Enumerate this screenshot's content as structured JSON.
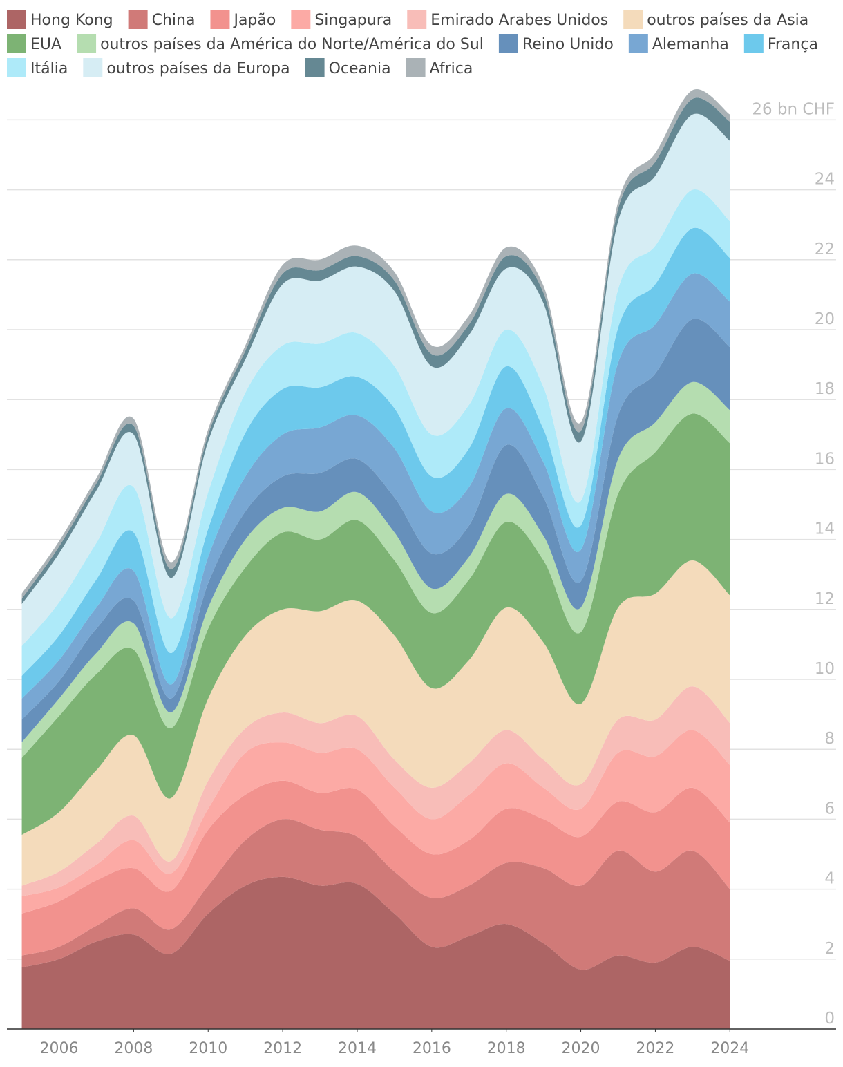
{
  "chart_data": {
    "type": "stacked-area",
    "x": [
      2005,
      2006,
      2007,
      2008,
      2009,
      2010,
      2011,
      2012,
      2013,
      2014,
      2015,
      2016,
      2017,
      2018,
      2019,
      2020,
      2021,
      2022,
      2023,
      2024
    ],
    "xlim": [
      2004.6,
      2026.85
    ],
    "xticks": [
      2006,
      2008,
      2010,
      2012,
      2014,
      2016,
      2018,
      2020,
      2022,
      2024
    ],
    "ylim": [
      0,
      26
    ],
    "yticks": [
      0,
      2,
      4,
      6,
      8,
      10,
      12,
      14,
      16,
      18,
      20,
      22,
      24,
      {
        "value": 26,
        "label": "26 bn CHF"
      }
    ],
    "grid": true,
    "legend": "top",
    "series": [
      {
        "name": "Hong Kong",
        "color": "#ad6565",
        "values": [
          1.76,
          2.0,
          2.5,
          2.7,
          2.15,
          3.3,
          4.1,
          4.35,
          4.1,
          4.15,
          3.3,
          2.35,
          2.65,
          3.0,
          2.45,
          1.7,
          2.1,
          1.9,
          2.35,
          1.95
        ]
      },
      {
        "name": "China",
        "color": "#d07a78",
        "values": [
          0.34,
          0.35,
          0.45,
          0.75,
          0.7,
          0.8,
          1.3,
          1.65,
          1.6,
          1.35,
          1.2,
          1.4,
          1.45,
          1.75,
          2.15,
          2.4,
          3.0,
          2.6,
          2.75,
          2.05
        ]
      },
      {
        "name": "Japão",
        "color": "#f2928e",
        "values": [
          1.2,
          1.3,
          1.3,
          1.15,
          1.1,
          1.6,
          1.3,
          1.1,
          1.05,
          1.35,
          1.3,
          1.25,
          1.3,
          1.55,
          1.4,
          1.4,
          1.4,
          1.7,
          1.8,
          1.9
        ]
      },
      {
        "name": "Singapura",
        "color": "#fcaaa5",
        "values": [
          0.5,
          0.4,
          0.45,
          0.8,
          0.5,
          0.6,
          1.2,
          1.1,
          1.15,
          1.15,
          1.1,
          1.0,
          1.3,
          1.3,
          0.9,
          0.8,
          1.4,
          1.6,
          1.65,
          1.65
        ]
      },
      {
        "name": "Emirado Arabes Unidos",
        "color": "#f8bdb8",
        "values": [
          0.3,
          0.45,
          0.6,
          0.7,
          0.35,
          0.8,
          0.7,
          0.85,
          0.85,
          0.95,
          0.8,
          0.9,
          0.9,
          0.95,
          0.8,
          0.7,
          0.95,
          1.05,
          1.25,
          1.2
        ]
      },
      {
        "name": "outros países da Asia",
        "color": "#f4dbbb",
        "values": [
          1.45,
          1.7,
          2.1,
          2.3,
          1.8,
          2.35,
          2.65,
          2.95,
          3.2,
          3.3,
          3.55,
          2.85,
          2.95,
          3.5,
          3.35,
          2.3,
          3.2,
          3.6,
          3.6,
          3.65
        ]
      },
      {
        "name": "EUA",
        "color": "#7db374",
        "values": [
          2.2,
          2.75,
          2.75,
          2.45,
          2.0,
          2.0,
          1.95,
          2.2,
          2.05,
          2.3,
          2.15,
          2.15,
          2.3,
          2.45,
          2.35,
          2.05,
          3.25,
          4.05,
          4.2,
          4.35
        ]
      },
      {
        "name": "outros países da América do Norte/América do Sul",
        "color": "#b5ddb0",
        "values": [
          0.45,
          0.5,
          0.6,
          0.75,
          0.45,
          0.6,
          0.8,
          0.7,
          0.8,
          0.8,
          0.8,
          0.7,
          0.65,
          0.8,
          0.7,
          0.7,
          1.0,
          0.85,
          0.9,
          0.95
        ]
      },
      {
        "name": "Reino Unido",
        "color": "#6690bb",
        "values": [
          0.65,
          0.5,
          0.7,
          0.65,
          0.4,
          0.7,
          0.8,
          0.9,
          1.1,
          0.95,
          1.0,
          1.0,
          0.9,
          1.4,
          1.1,
          0.75,
          1.25,
          1.4,
          1.8,
          1.8
        ]
      },
      {
        "name": "Alemanha",
        "color": "#78a7d3",
        "values": [
          0.6,
          0.6,
          0.6,
          0.85,
          0.4,
          0.75,
          1.0,
          1.2,
          1.3,
          1.25,
          1.4,
          1.2,
          1.1,
          1.05,
          1.0,
          0.9,
          1.5,
          1.4,
          1.3,
          1.3
        ]
      },
      {
        "name": "França",
        "color": "#6dc9ec",
        "values": [
          0.65,
          0.7,
          0.8,
          1.1,
          0.9,
          0.8,
          1.25,
          1.3,
          1.15,
          1.1,
          1.15,
          1.0,
          1.1,
          1.2,
          0.95,
          0.7,
          1.0,
          1.15,
          1.3,
          1.25
        ]
      },
      {
        "name": "Itália",
        "color": "#aeeaf9",
        "values": [
          0.85,
          0.95,
          1.05,
          1.3,
          1.0,
          1.05,
          1.15,
          1.25,
          1.25,
          1.25,
          1.2,
          1.2,
          1.25,
          1.05,
          1.2,
          0.7,
          1.1,
          1.1,
          1.1,
          1.05
        ]
      },
      {
        "name": "outros países da Europa",
        "color": "#d6edf4",
        "values": [
          1.2,
          1.4,
          1.5,
          1.5,
          1.15,
          1.45,
          0.95,
          1.75,
          1.8,
          1.9,
          2.15,
          1.95,
          2.0,
          1.75,
          2.4,
          1.7,
          1.95,
          2.0,
          2.15,
          2.3
        ]
      },
      {
        "name": "Oceania",
        "color": "#658893",
        "values": [
          0.15,
          0.2,
          0.2,
          0.25,
          0.25,
          0.2,
          0.25,
          0.3,
          0.3,
          0.3,
          0.3,
          0.35,
          0.3,
          0.35,
          0.3,
          0.3,
          0.35,
          0.4,
          0.45,
          0.55
        ]
      },
      {
        "name": "Africa",
        "color": "#aab2b6",
        "values": [
          0.15,
          0.15,
          0.15,
          0.2,
          0.2,
          0.15,
          0.15,
          0.25,
          0.3,
          0.3,
          0.25,
          0.25,
          0.25,
          0.25,
          0.2,
          0.25,
          0.2,
          0.25,
          0.25,
          0.2
        ]
      }
    ]
  }
}
